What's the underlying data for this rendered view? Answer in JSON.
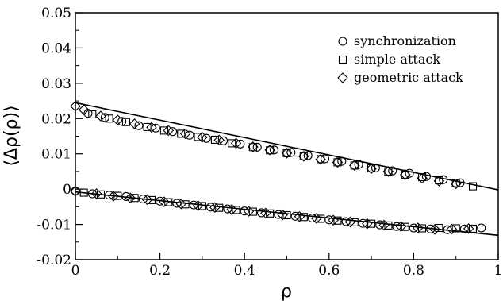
{
  "chart_data": {
    "type": "scatter",
    "xlabel": "ρ",
    "ylabel": "⟨Δρ(ρ)⟩",
    "xlim": [
      0,
      1
    ],
    "ylim": [
      -0.02,
      0.05
    ],
    "x_ticks": [
      0,
      0.2,
      0.4,
      0.6,
      0.8,
      1
    ],
    "x_tick_labels": [
      "0",
      "0.2",
      "0.4",
      "0.6",
      "0.8",
      "1"
    ],
    "y_ticks": [
      -0.02,
      -0.01,
      0,
      0.01,
      0.02,
      0.03,
      0.04,
      0.05
    ],
    "y_tick_labels": [
      "-0.02",
      "-0.01",
      "0",
      "0.01",
      "0.02",
      "0.03",
      "0.04",
      "0.05"
    ],
    "grid": false,
    "legend_position": "top-right",
    "series": [
      {
        "name": "synchronization",
        "marker": "circle",
        "x": [
          0.0,
          0.04,
          0.08,
          0.12,
          0.16,
          0.2,
          0.24,
          0.28,
          0.32,
          0.36,
          0.4,
          0.44,
          0.48,
          0.52,
          0.56,
          0.6,
          0.64,
          0.68,
          0.72,
          0.76,
          0.8,
          0.84,
          0.88,
          0.92,
          0.96
        ],
        "y": [
          -0.0005,
          -0.0013,
          -0.0017,
          -0.0021,
          -0.0028,
          -0.0034,
          -0.004,
          -0.0045,
          -0.0051,
          -0.0056,
          -0.0062,
          -0.0067,
          -0.0072,
          -0.0077,
          -0.0082,
          -0.0087,
          -0.0092,
          -0.0097,
          -0.0101,
          -0.0106,
          -0.011,
          -0.0113,
          -0.0115,
          -0.0113,
          -0.011
        ]
      },
      {
        "name": "simple attack",
        "marker": "square",
        "x": [
          0.02,
          0.06,
          0.1,
          0.14,
          0.18,
          0.22,
          0.26,
          0.3,
          0.34,
          0.38,
          0.42,
          0.46,
          0.5,
          0.54,
          0.58,
          0.62,
          0.66,
          0.7,
          0.74,
          0.78,
          0.82,
          0.86,
          0.9,
          0.94
        ],
        "y": [
          -0.001,
          -0.0015,
          -0.0019,
          -0.0025,
          -0.0031,
          -0.0037,
          -0.0043,
          -0.0048,
          -0.0053,
          -0.0059,
          -0.0064,
          -0.0069,
          -0.0074,
          -0.0079,
          -0.0084,
          -0.0089,
          -0.0094,
          -0.0098,
          -0.0103,
          -0.0107,
          -0.0111,
          -0.011,
          -0.0111,
          -0.0112
        ]
      },
      {
        "name": "geometric attack",
        "marker": "diamond",
        "x": [
          0.0,
          0.05,
          0.09,
          0.13,
          0.17,
          0.21,
          0.25,
          0.29,
          0.33,
          0.37,
          0.41,
          0.45,
          0.49,
          0.53,
          0.57,
          0.61,
          0.65,
          0.69,
          0.73,
          0.77,
          0.81,
          0.85,
          0.89,
          0.93
        ],
        "y": [
          -0.0006,
          -0.0013,
          -0.002,
          -0.0025,
          -0.003,
          -0.0036,
          -0.0042,
          -0.0047,
          -0.0052,
          -0.0058,
          -0.0063,
          -0.0068,
          -0.0073,
          -0.0078,
          -0.0083,
          -0.0088,
          -0.0093,
          -0.0098,
          -0.0102,
          -0.0106,
          -0.011,
          -0.0114,
          -0.0113,
          -0.0112
        ]
      },
      {
        "marker": "circle",
        "x": [
          0.03,
          0.07,
          0.11,
          0.15,
          0.19,
          0.23,
          0.27,
          0.31,
          0.35,
          0.39,
          0.43,
          0.47,
          0.51,
          0.55,
          0.59,
          0.63,
          0.67,
          0.71,
          0.75,
          0.79,
          0.83,
          0.87,
          0.91
        ],
        "y": [
          0.0215,
          0.0203,
          0.0192,
          0.018,
          0.0173,
          0.0163,
          0.0153,
          0.0144,
          0.0137,
          0.0128,
          0.0119,
          0.0111,
          0.0104,
          0.0095,
          0.0086,
          0.0079,
          0.007,
          0.006,
          0.0052,
          0.0045,
          0.0036,
          0.0027,
          0.0018
        ]
      },
      {
        "marker": "square",
        "x": [
          0.04,
          0.08,
          0.12,
          0.17,
          0.21,
          0.25,
          0.29,
          0.33,
          0.37,
          0.42,
          0.46,
          0.5,
          0.54,
          0.58,
          0.62,
          0.66,
          0.7,
          0.74,
          0.78,
          0.82,
          0.86,
          0.9,
          0.94
        ],
        "y": [
          0.0212,
          0.02,
          0.019,
          0.0176,
          0.0166,
          0.0157,
          0.0148,
          0.014,
          0.013,
          0.0119,
          0.011,
          0.0102,
          0.0093,
          0.0085,
          0.0076,
          0.0067,
          0.0059,
          0.005,
          0.0041,
          0.0034,
          0.0025,
          0.0017,
          0.0008
        ]
      },
      {
        "marker": "diamond",
        "x": [
          0.0,
          0.02,
          0.06,
          0.1,
          0.14,
          0.18,
          0.22,
          0.26,
          0.3,
          0.34,
          0.38,
          0.42,
          0.46,
          0.5,
          0.54,
          0.58,
          0.62,
          0.66,
          0.7,
          0.74,
          0.78,
          0.82,
          0.86,
          0.9
        ],
        "y": [
          0.0235,
          0.0225,
          0.0207,
          0.0196,
          0.0185,
          0.0175,
          0.0166,
          0.0157,
          0.0147,
          0.0139,
          0.013,
          0.012,
          0.0111,
          0.0102,
          0.0093,
          0.0084,
          0.0076,
          0.0067,
          0.0058,
          0.005,
          0.0041,
          0.0031,
          0.0023,
          0.0015
        ]
      }
    ],
    "fit_lines": [
      {
        "x": [
          0,
          1
        ],
        "y": [
          0.0245,
          -0.0002
        ]
      },
      {
        "x": [
          0,
          1
        ],
        "y": [
          -0.0008,
          -0.0131
        ]
      }
    ]
  }
}
